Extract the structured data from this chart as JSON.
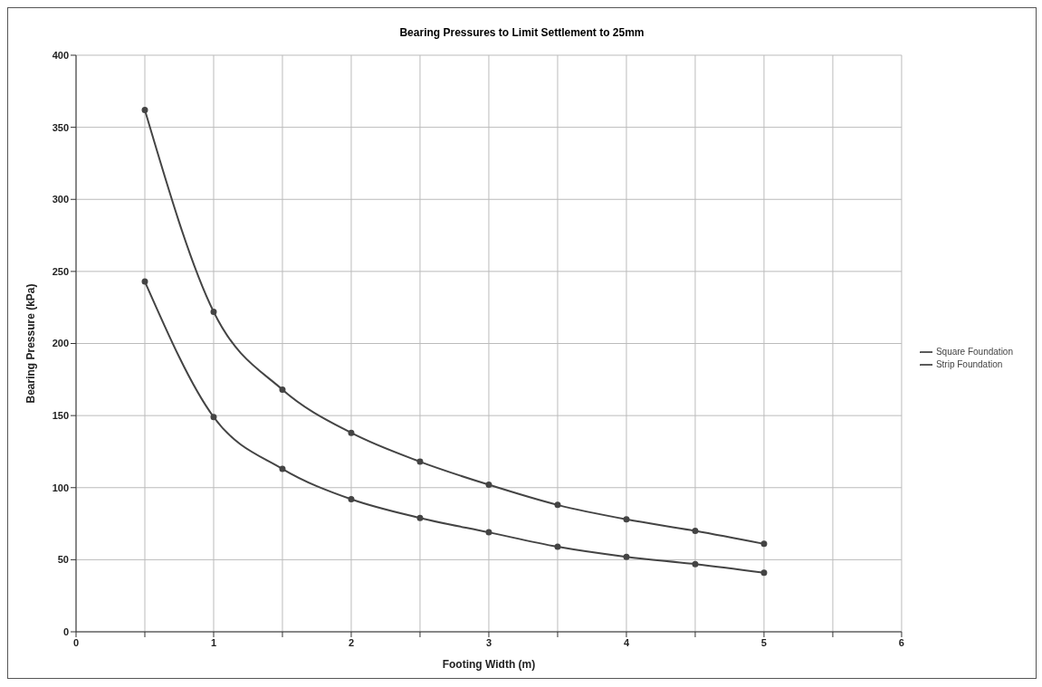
{
  "chart_data": {
    "type": "line",
    "title": "Bearing Pressures to Limit Settlement to 25mm",
    "xlabel": "Footing Width (m)",
    "ylabel": "Bearing Pressure (kPa)",
    "x": [
      0.5,
      1,
      1.5,
      2,
      2.5,
      3,
      3.5,
      4,
      4.5,
      5
    ],
    "series": [
      {
        "name": "Square Foundation",
        "color": "#444444",
        "values": [
          362,
          222,
          168,
          138,
          118,
          102,
          88,
          78,
          70,
          61
        ]
      },
      {
        "name": "Strip Foundation",
        "color": "#444444",
        "values": [
          243,
          149,
          113,
          92,
          79,
          69,
          59,
          52,
          47,
          41
        ]
      }
    ],
    "xlim": [
      0,
      6
    ],
    "xticks": [
      0,
      {
        "value": 0.5,
        "label": null
      },
      1,
      {
        "value": 1.5,
        "label": null
      },
      2,
      {
        "value": 2.5,
        "label": null
      },
      3,
      {
        "value": 3.5,
        "label": null
      },
      4,
      {
        "value": 4.5,
        "label": null
      },
      5,
      {
        "value": 5.5,
        "label": null
      },
      6
    ],
    "ylim": [
      0,
      400
    ],
    "yticks": [
      0,
      50,
      100,
      150,
      200,
      250,
      300,
      350,
      400
    ],
    "grid": true,
    "legend": "right",
    "marker": "circle",
    "line_style": "solid"
  }
}
